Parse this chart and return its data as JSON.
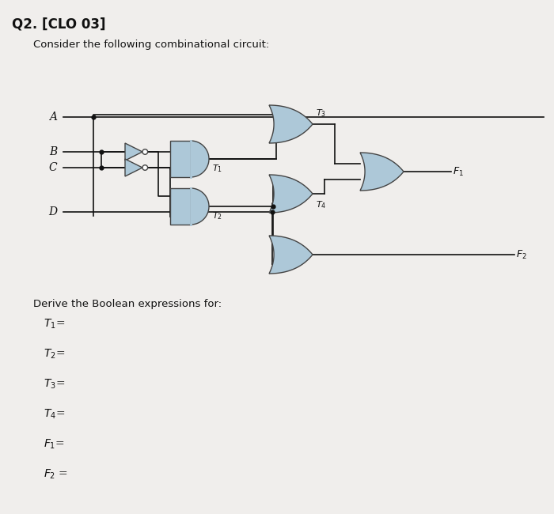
{
  "title": "Q2. [CLO 03]",
  "subtitle": "Consider the following combinational circuit:",
  "background_color": "#f0eeec",
  "gate_fill": "#adc8d8",
  "gate_edge": "#444444",
  "line_color": "#111111",
  "text_color": "#111111",
  "inputs": [
    "A",
    "B",
    "C",
    "D"
  ],
  "derive_text": "Derive the Boolean expressions for:",
  "bottom_items": [
    [
      "T",
      "1"
    ],
    [
      "T",
      "2"
    ],
    [
      "T",
      "3"
    ],
    [
      "T",
      "4"
    ],
    [
      "F",
      "1"
    ],
    [
      "F",
      "2"
    ]
  ],
  "fig_w": 7.0,
  "fig_h": 6.5,
  "dpi": 100,
  "lw": 1.2,
  "gate_lw": 1.0
}
